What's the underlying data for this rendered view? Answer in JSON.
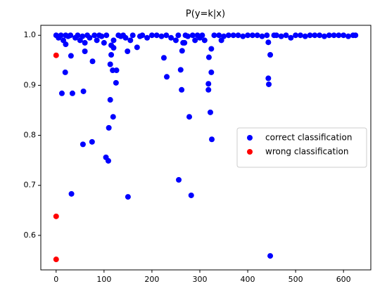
{
  "chart_data": {
    "type": "scatter",
    "title": "P(y=k|x)",
    "xlim": [
      -32,
      657
    ],
    "ylim": [
      0.531,
      1.02
    ],
    "xticks": [
      0,
      100,
      200,
      300,
      400,
      500,
      600
    ],
    "yticks": [
      0.6,
      0.7,
      0.8,
      0.9,
      {
        "value": 1,
        "label": "1.0"
      }
    ],
    "legend": "center right",
    "series": [
      {
        "name": "correct classification",
        "color": "#0000ff",
        "x": [
          19,
          12,
          34,
          31,
          57,
          60,
          76,
          56,
          75,
          32,
          104,
          109,
          110,
          113,
          119,
          125,
          126,
          118,
          115,
          113,
          150,
          149,
          169,
          225,
          231,
          260,
          262,
          263,
          256,
          278,
          282,
          318,
          318,
          319,
          322,
          324,
          324,
          325,
          443,
          444,
          447,
          447,
          443,
          0,
          5,
          10,
          15,
          20,
          25,
          30,
          40,
          45,
          50,
          55,
          65,
          70,
          80,
          85,
          90,
          95,
          100,
          105,
          120,
          130,
          135,
          140,
          145,
          155,
          160,
          175,
          180,
          190,
          200,
          210,
          220,
          230,
          240,
          250,
          255,
          265,
          270,
          275,
          285,
          290,
          295,
          300,
          305,
          310,
          330,
          340,
          350,
          360,
          370,
          380,
          390,
          400,
          410,
          420,
          430,
          440,
          455,
          460,
          470,
          480,
          490,
          500,
          510,
          520,
          530,
          540,
          550,
          560,
          570,
          580,
          590,
          600,
          610,
          620,
          625,
          120,
          60,
          20,
          115,
          268,
          345
        ],
        "values": [
          0.926,
          0.884,
          0.884,
          0.959,
          0.888,
          0.968,
          0.948,
          0.782,
          0.787,
          0.683,
          0.756,
          0.749,
          0.815,
          0.871,
          0.837,
          0.905,
          0.93,
          0.93,
          0.961,
          0.942,
          0.677,
          0.968,
          0.976,
          0.955,
          0.917,
          0.931,
          0.891,
          0.969,
          0.711,
          0.837,
          0.68,
          0.903,
          0.891,
          0.956,
          0.846,
          0.926,
          0.973,
          0.792,
          0.914,
          0.902,
          0.961,
          0.559,
          0.986,
          1.0,
          0.995,
          1.0,
          0.99,
          1.0,
          0.998,
          1.0,
          0.995,
          1.0,
          0.99,
          0.998,
          1.0,
          0.995,
          1.0,
          0.99,
          1.0,
          0.998,
          0.985,
          1.0,
          0.99,
          1.0,
          0.998,
          1.0,
          0.995,
          0.99,
          1.0,
          0.998,
          1.0,
          0.995,
          1.0,
          1.0,
          0.998,
          1.0,
          0.995,
          0.99,
          1.0,
          0.985,
          1.0,
          0.998,
          1.0,
          0.99,
          1.0,
          0.995,
          1.0,
          0.99,
          1.0,
          1.0,
          0.998,
          1.0,
          1.0,
          1.0,
          0.998,
          1.0,
          1.0,
          1.0,
          0.998,
          1.0,
          1.0,
          1.0,
          0.998,
          1.0,
          0.995,
          1.0,
          1.0,
          0.998,
          1.0,
          1.0,
          1.0,
          0.998,
          1.0,
          1.0,
          1.0,
          1.0,
          0.998,
          1.0,
          1.0,
          0.975,
          0.985,
          0.982,
          0.98,
          0.985,
          0.99
        ]
      },
      {
        "name": "wrong classification",
        "color": "#ff0000",
        "x": [
          0,
          0,
          0
        ],
        "values": [
          0.96,
          0.638,
          0.552
        ]
      }
    ]
  }
}
